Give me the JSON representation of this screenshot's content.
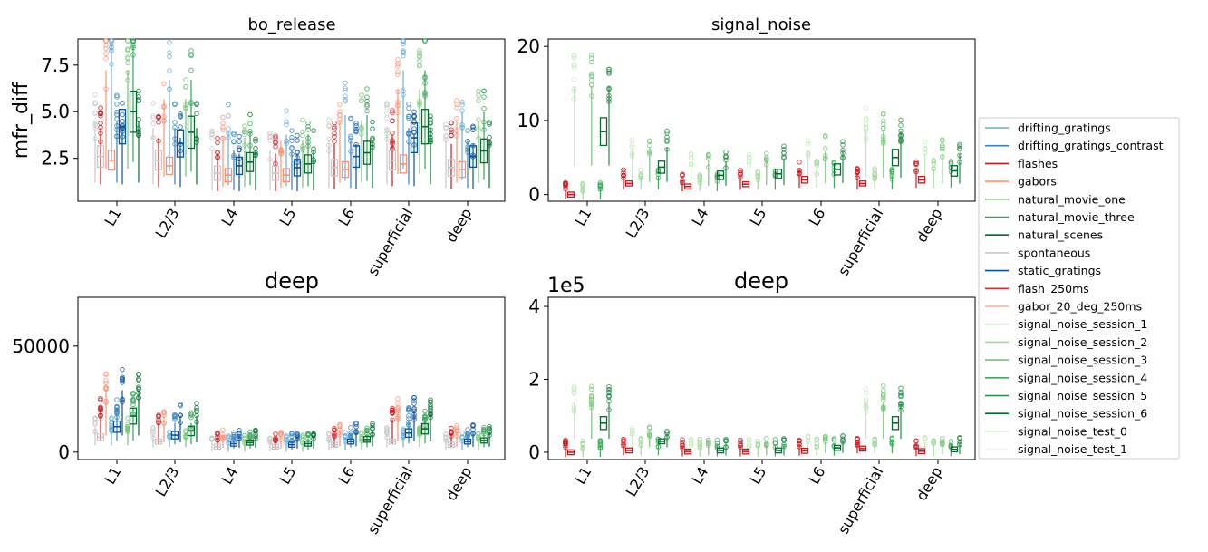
{
  "legend": [
    {
      "name": "drifting_gratings",
      "color": "#6baed6"
    },
    {
      "name": "drifting_gratings_contrast",
      "color": "#3182bd"
    },
    {
      "name": "flashes",
      "color": "#cb181d"
    },
    {
      "name": "gabors",
      "color": "#fc9272"
    },
    {
      "name": "natural_movie_one",
      "color": "#74c476"
    },
    {
      "name": "natural_movie_three",
      "color": "#31a354"
    },
    {
      "name": "natural_scenes",
      "color": "#006d2c"
    },
    {
      "name": "spontaneous",
      "color": "#c8c8c8"
    },
    {
      "name": "static_gratings",
      "color": "#08519c"
    },
    {
      "name": "flash_250ms",
      "color": "#de2d26"
    },
    {
      "name": "gabor_20_deg_250ms",
      "color": "#fcae91"
    },
    {
      "name": "signal_noise_session_1",
      "color": "#c7e9c0"
    },
    {
      "name": "signal_noise_session_2",
      "color": "#a1d99b"
    },
    {
      "name": "signal_noise_session_3",
      "color": "#74c476"
    },
    {
      "name": "signal_noise_session_4",
      "color": "#41ab5d"
    },
    {
      "name": "signal_noise_session_5",
      "color": "#238b45"
    },
    {
      "name": "signal_noise_session_6",
      "color": "#006d2c"
    },
    {
      "name": "signal_noise_test_0",
      "color": "#d9f0d3"
    },
    {
      "name": "signal_noise_test_1",
      "color": "#edf8e9"
    }
  ],
  "chart_data": [
    {
      "type": "box",
      "title": "bo_release",
      "ylabel": "mfr_diff",
      "categories": [
        "L1",
        "L2/3",
        "L4",
        "L5",
        "L6",
        "superficial",
        "deep"
      ],
      "yticks": [
        "2.5",
        "5.0",
        "7.5"
      ],
      "ylim": [
        0.2,
        8.9
      ],
      "medians": {
        "spontaneous": [
          2.6,
          2.4,
          1.7,
          1.7,
          2.0,
          2.4,
          2.0
        ],
        "gabors": [
          2.4,
          2.1,
          1.6,
          1.6,
          1.9,
          2.2,
          1.9
        ],
        "static_gratings": [
          4.2,
          3.3,
          2.1,
          2.0,
          2.6,
          3.6,
          2.6
        ],
        "natural_scenes": [
          5.0,
          3.9,
          2.3,
          2.2,
          2.8,
          4.2,
          2.9
        ]
      }
    },
    {
      "type": "box",
      "title": "signal_noise",
      "categories": [
        "L1",
        "L2/3",
        "L4",
        "L5",
        "L6",
        "superficial",
        "deep"
      ],
      "yticks": [
        "0",
        "10",
        "20"
      ],
      "ylim": [
        -0.9,
        21
      ],
      "medians": {
        "flashes": [
          0,
          1.5,
          1.1,
          1.4,
          2.0,
          1.5,
          2.0
        ],
        "signal_noise_session_6": [
          8.5,
          3.7,
          2.6,
          2.8,
          3.4,
          5.0,
          3.2
        ]
      }
    },
    {
      "type": "box",
      "title": "deep",
      "categories": [
        "L1",
        "L2/3",
        "L4",
        "L5",
        "L6",
        "superficial",
        "deep"
      ],
      "yticks": [
        "0",
        "50000"
      ],
      "ylim": [
        -3500,
        73000
      ],
      "medians": {
        "spontaneous": [
          7000,
          5000,
          2500,
          2500,
          3500,
          5000,
          3500
        ],
        "static_gratings": [
          12000,
          8000,
          4000,
          3500,
          5000,
          9000,
          5000
        ],
        "natural_scenes": [
          17000,
          10000,
          4500,
          4000,
          6000,
          11000,
          5500
        ]
      }
    },
    {
      "type": "box",
      "title": "deep",
      "offset_label": "1e5",
      "categories": [
        "L1",
        "L2/3",
        "L4",
        "L5",
        "L6",
        "superficial",
        "deep"
      ],
      "yticks": [
        "0",
        "2",
        "4"
      ],
      "ylim": [
        -0.2,
        4.25
      ],
      "medians": {
        "flashes": [
          0,
          0.05,
          0.02,
          0.02,
          0.04,
          0.1,
          0.03
        ],
        "signal_noise_session_6": [
          0.8,
          0.3,
          0.05,
          0.05,
          0.12,
          0.8,
          0.08
        ]
      }
    }
  ]
}
